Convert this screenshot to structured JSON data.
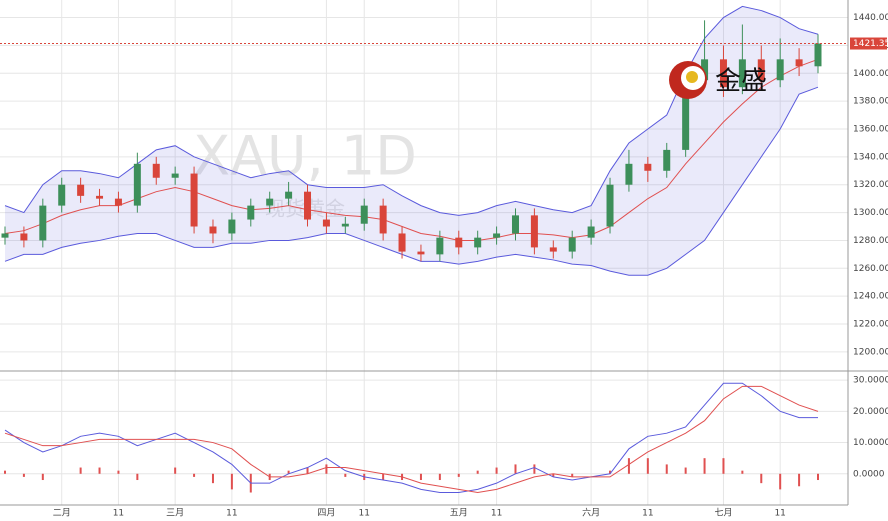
{
  "chart_data": [
    {
      "type": "candlestick",
      "watermark": "XAU, 1D",
      "watermark_sub": "现货黄金",
      "logo": "金盛",
      "current_price": 1421.35,
      "up_color": "#3d8f5a",
      "down_color": "#d9453a",
      "band_color": "#5a5adc",
      "mid_color": "#e05050",
      "grid": true,
      "ylim": [
        1187,
        1449
      ],
      "yticks": [
        {
          "value": 1200,
          "label": "1200.00"
        },
        {
          "value": 1220,
          "label": "1220.00"
        },
        {
          "value": 1240,
          "label": "1240.00"
        },
        {
          "value": 1260,
          "label": "1260.00"
        },
        {
          "value": 1280,
          "label": "1280.00"
        },
        {
          "value": 1300,
          "label": "1300.00"
        },
        {
          "value": 1320,
          "label": "1320.00"
        },
        {
          "value": 1340,
          "label": "1340.00"
        },
        {
          "value": 1360,
          "label": "1360.00"
        },
        {
          "value": 1380,
          "label": "1380.00"
        },
        {
          "value": 1400,
          "label": "1400.00"
        },
        {
          "value": 1420,
          "label": "1420.00"
        },
        {
          "value": 1440,
          "label": "1440.00"
        }
      ],
      "categories": [
        null,
        null,
        null,
        "二月",
        null,
        null,
        "11",
        null,
        null,
        "三月",
        null,
        null,
        "11",
        null,
        null,
        null,
        null,
        "四月",
        null,
        "11",
        null,
        null,
        null,
        null,
        "五月",
        null,
        "11",
        null,
        null,
        null,
        null,
        "六月",
        null,
        null,
        "11",
        null,
        null,
        null,
        "七月",
        null,
        null,
        "11",
        null,
        null
      ],
      "candles": [
        [
          1282,
          1290,
          1277,
          1285
        ],
        [
          1285,
          1290,
          1275,
          1280
        ],
        [
          1280,
          1310,
          1275,
          1305
        ],
        [
          1305,
          1325,
          1300,
          1320
        ],
        [
          1320,
          1325,
          1307,
          1312
        ],
        [
          1312,
          1317,
          1305,
          1310
        ],
        [
          1310,
          1315,
          1300,
          1305
        ],
        [
          1305,
          1343,
          1300,
          1335
        ],
        [
          1335,
          1340,
          1320,
          1325
        ],
        [
          1325,
          1333,
          1320,
          1328
        ],
        [
          1328,
          1333,
          1285,
          1290
        ],
        [
          1290,
          1295,
          1278,
          1285
        ],
        [
          1285,
          1300,
          1280,
          1295
        ],
        [
          1295,
          1310,
          1290,
          1305
        ],
        [
          1305,
          1315,
          1300,
          1310
        ],
        [
          1310,
          1322,
          1305,
          1315
        ],
        [
          1315,
          1320,
          1290,
          1295
        ],
        [
          1295,
          1300,
          1285,
          1290
        ],
        [
          1290,
          1297,
          1285,
          1292
        ],
        [
          1292,
          1310,
          1287,
          1305
        ],
        [
          1305,
          1310,
          1280,
          1285
        ],
        [
          1285,
          1290,
          1267,
          1272
        ],
        [
          1272,
          1277,
          1265,
          1270
        ],
        [
          1270,
          1287,
          1265,
          1282
        ],
        [
          1282,
          1287,
          1270,
          1275
        ],
        [
          1275,
          1287,
          1270,
          1282
        ],
        [
          1282,
          1290,
          1277,
          1285
        ],
        [
          1285,
          1303,
          1280,
          1298
        ],
        [
          1298,
          1303,
          1270,
          1275
        ],
        [
          1275,
          1280,
          1267,
          1272
        ],
        [
          1272,
          1287,
          1267,
          1282
        ],
        [
          1282,
          1295,
          1277,
          1290
        ],
        [
          1290,
          1325,
          1285,
          1320
        ],
        [
          1320,
          1345,
          1315,
          1335
        ],
        [
          1335,
          1340,
          1322,
          1330
        ],
        [
          1330,
          1350,
          1325,
          1345
        ],
        [
          1345,
          1400,
          1340,
          1395
        ],
        [
          1395,
          1438,
          1390,
          1410
        ],
        [
          1410,
          1420,
          1383,
          1390
        ],
        [
          1390,
          1435,
          1385,
          1410
        ],
        [
          1410,
          1420,
          1388,
          1395
        ],
        [
          1395,
          1425,
          1390,
          1410
        ],
        [
          1410,
          1418,
          1398,
          1405
        ],
        [
          1405,
          1428,
          1400,
          1421.35
        ]
      ],
      "upper": [
        1305,
        1300,
        1320,
        1330,
        1330,
        1328,
        1325,
        1335,
        1345,
        1348,
        1340,
        1335,
        1330,
        1325,
        1328,
        1330,
        1320,
        1318,
        1318,
        1318,
        1320,
        1312,
        1305,
        1300,
        1298,
        1300,
        1305,
        1308,
        1305,
        1302,
        1300,
        1305,
        1330,
        1350,
        1360,
        1370,
        1400,
        1425,
        1440,
        1448,
        1445,
        1440,
        1432,
        1428
      ],
      "middle": [
        1285,
        1287,
        1292,
        1298,
        1302,
        1305,
        1305,
        1310,
        1315,
        1318,
        1315,
        1310,
        1305,
        1302,
        1303,
        1305,
        1302,
        1300,
        1298,
        1297,
        1295,
        1290,
        1285,
        1283,
        1280,
        1280,
        1282,
        1285,
        1285,
        1284,
        1282,
        1284,
        1290,
        1300,
        1310,
        1318,
        1335,
        1350,
        1365,
        1378,
        1390,
        1398,
        1405,
        1410
      ],
      "lower": [
        1265,
        1270,
        1270,
        1275,
        1278,
        1280,
        1283,
        1285,
        1285,
        1280,
        1275,
        1275,
        1278,
        1278,
        1280,
        1280,
        1282,
        1285,
        1285,
        1280,
        1275,
        1270,
        1265,
        1265,
        1263,
        1265,
        1268,
        1270,
        1268,
        1266,
        1263,
        1262,
        1258,
        1255,
        1255,
        1260,
        1270,
        1280,
        1300,
        1320,
        1340,
        1360,
        1385,
        1390
      ]
    },
    {
      "type": "macd",
      "ylim": [
        -10,
        32.6
      ],
      "yticks": [
        {
          "value": 0,
          "label": "0.0000"
        },
        {
          "value": 10,
          "label": "10.0000"
        },
        {
          "value": 20,
          "label": "20.0000"
        },
        {
          "value": 30,
          "label": "30.0000"
        }
      ],
      "dif_color": "#5a5adc",
      "dea_color": "#e05050",
      "pos_color": "#e05050",
      "neg_color": "#e05050",
      "dif": [
        14,
        10,
        7,
        9,
        12,
        13,
        12,
        9,
        11,
        13,
        10,
        7,
        3,
        -3,
        -3,
        0,
        2,
        5,
        1,
        -1,
        -2,
        -3,
        -5,
        -6,
        -6,
        -5,
        -3,
        0,
        2,
        -1,
        -2,
        -1,
        0,
        8,
        12,
        13,
        15,
        22,
        29,
        29,
        25,
        20,
        18,
        18
      ],
      "dea": [
        13,
        11,
        9,
        9,
        10,
        11,
        11,
        11,
        11,
        11,
        11,
        10,
        8,
        3,
        -1,
        -1,
        0,
        2,
        2,
        1,
        0,
        -1,
        -3,
        -4,
        -5,
        -6,
        -5,
        -3,
        -1,
        0,
        -1,
        -1,
        -1,
        3,
        7,
        10,
        13,
        17,
        24,
        28,
        28,
        25,
        22,
        20
      ],
      "hist": [
        1,
        -1,
        -2,
        0,
        2,
        2,
        1,
        -2,
        0,
        2,
        -1,
        -3,
        -5,
        -6,
        -2,
        1,
        2,
        3,
        -1,
        -2,
        -2,
        -2,
        -2,
        -2,
        -1,
        1,
        2,
        3,
        3,
        -1,
        -1,
        0,
        1,
        5,
        5,
        3,
        2,
        5,
        5,
        1,
        -3,
        -5,
        -4,
        -2
      ]
    }
  ]
}
